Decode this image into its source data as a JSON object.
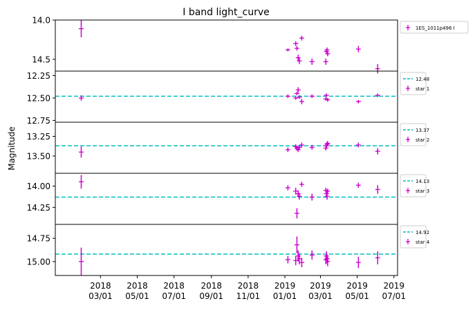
{
  "title": "I band light_curve",
  "ylabel": "Magnitude",
  "colors": {
    "points": "#cc00cc",
    "refline": "#00bfbf",
    "axes": "#000000"
  },
  "chart_data": {
    "type": "scatter",
    "title": "I band light_curve",
    "xlabel": "",
    "ylabel": "Magnitude",
    "y_inverted": true,
    "grid": false,
    "legend_placement": "outside-right",
    "xlim": [
      "2017-12-16",
      "2019-07-07"
    ],
    "x_ticks": [
      {
        "date": "2018-03-01",
        "line1": "2018",
        "line2": "03/01"
      },
      {
        "date": "2018-05-01",
        "line1": "2018",
        "line2": "05/01"
      },
      {
        "date": "2018-07-01",
        "line1": "2018",
        "line2": "07/01"
      },
      {
        "date": "2018-09-01",
        "line1": "2018",
        "line2": "09/01"
      },
      {
        "date": "2018-11-01",
        "line1": "2018",
        "line2": "11/01"
      },
      {
        "date": "2019-01-01",
        "line1": "2019",
        "line2": "01/01"
      },
      {
        "date": "2019-03-01",
        "line1": "2019",
        "line2": "03/01"
      },
      {
        "date": "2019-05-01",
        "line1": "2019",
        "line2": "05/01"
      },
      {
        "date": "2019-07-01",
        "line1": "2019",
        "line2": "07/01"
      }
    ],
    "panels": [
      {
        "series_name": "1ES_1011p496 I",
        "ylim": [
          14.0,
          14.65
        ],
        "yticks": [
          "14.0",
          "14.5"
        ],
        "points": [
          {
            "x": "2018-01-28",
            "y": 14.11,
            "err": 0.11
          },
          {
            "x": "2019-01-06",
            "y": 14.38,
            "err": 0.02
          },
          {
            "x": "2019-01-19",
            "y": 14.3,
            "err": 0.03
          },
          {
            "x": "2019-01-21",
            "y": 14.36,
            "err": 0.03
          },
          {
            "x": "2019-01-23",
            "y": 14.48,
            "err": 0.04
          },
          {
            "x": "2019-01-25",
            "y": 14.52,
            "err": 0.04
          },
          {
            "x": "2019-01-29",
            "y": 14.23,
            "err": 0.03
          },
          {
            "x": "2019-02-15",
            "y": 14.53,
            "err": 0.04
          },
          {
            "x": "2019-03-10",
            "y": 14.53,
            "err": 0.04
          },
          {
            "x": "2019-03-11",
            "y": 14.4,
            "err": 0.03
          },
          {
            "x": "2019-03-12",
            "y": 14.38,
            "err": 0.03
          },
          {
            "x": "2019-03-13",
            "y": 14.43,
            "err": 0.03
          },
          {
            "x": "2019-05-03",
            "y": 14.37,
            "err": 0.04
          },
          {
            "x": "2019-06-04",
            "y": 14.62,
            "err": 0.06
          }
        ]
      },
      {
        "series_name": "star 1",
        "ref": 12.48,
        "ref_label": "12.48",
        "ylim": [
          12.2,
          12.77
        ],
        "yticks": [
          "12.25",
          "12.50",
          "12.75"
        ],
        "points": [
          {
            "x": "2018-01-28",
            "y": 12.5,
            "err": 0.03
          },
          {
            "x": "2019-01-06",
            "y": 12.48,
            "err": 0.02
          },
          {
            "x": "2019-01-19",
            "y": 12.5,
            "err": 0.02
          },
          {
            "x": "2019-01-21",
            "y": 12.45,
            "err": 0.02
          },
          {
            "x": "2019-01-23",
            "y": 12.41,
            "err": 0.03
          },
          {
            "x": "2019-01-25",
            "y": 12.49,
            "err": 0.02
          },
          {
            "x": "2019-01-29",
            "y": 12.54,
            "err": 0.03
          },
          {
            "x": "2019-02-15",
            "y": 12.48,
            "err": 0.02
          },
          {
            "x": "2019-03-10",
            "y": 12.51,
            "err": 0.02
          },
          {
            "x": "2019-03-11",
            "y": 12.47,
            "err": 0.02
          },
          {
            "x": "2019-03-13",
            "y": 12.52,
            "err": 0.02
          },
          {
            "x": "2019-05-03",
            "y": 12.54,
            "err": 0.02
          },
          {
            "x": "2019-06-04",
            "y": 12.47,
            "err": 0.02
          }
        ]
      },
      {
        "series_name": "star 2",
        "ref": 13.37,
        "ref_label": "13.37",
        "ylim": [
          13.07,
          13.72
        ],
        "yticks": [
          "13.25",
          "13.50"
        ],
        "points": [
          {
            "x": "2018-01-28",
            "y": 13.45,
            "err": 0.07
          },
          {
            "x": "2019-01-06",
            "y": 13.42,
            "err": 0.03
          },
          {
            "x": "2019-01-19",
            "y": 13.38,
            "err": 0.03
          },
          {
            "x": "2019-01-21",
            "y": 13.4,
            "err": 0.03
          },
          {
            "x": "2019-01-23",
            "y": 13.42,
            "err": 0.03
          },
          {
            "x": "2019-01-25",
            "y": 13.39,
            "err": 0.03
          },
          {
            "x": "2019-01-29",
            "y": 13.36,
            "err": 0.03
          },
          {
            "x": "2019-02-15",
            "y": 13.39,
            "err": 0.03
          },
          {
            "x": "2019-03-10",
            "y": 13.4,
            "err": 0.03
          },
          {
            "x": "2019-03-11",
            "y": 13.37,
            "err": 0.03
          },
          {
            "x": "2019-03-12",
            "y": 13.35,
            "err": 0.03
          },
          {
            "x": "2019-03-13",
            "y": 13.34,
            "err": 0.03
          },
          {
            "x": "2019-05-03",
            "y": 13.36,
            "err": 0.03
          },
          {
            "x": "2019-06-04",
            "y": 13.44,
            "err": 0.04
          }
        ]
      },
      {
        "series_name": "star 3",
        "ref": 14.13,
        "ref_label": "14.13",
        "ylim": [
          13.85,
          14.45
        ],
        "yticks": [
          "14.00",
          "14.25"
        ],
        "points": [
          {
            "x": "2018-01-28",
            "y": 13.95,
            "err": 0.08
          },
          {
            "x": "2019-01-06",
            "y": 14.02,
            "err": 0.03
          },
          {
            "x": "2019-01-19",
            "y": 14.06,
            "err": 0.04
          },
          {
            "x": "2019-01-21",
            "y": 14.32,
            "err": 0.06
          },
          {
            "x": "2019-01-23",
            "y": 14.09,
            "err": 0.04
          },
          {
            "x": "2019-01-25",
            "y": 14.12,
            "err": 0.04
          },
          {
            "x": "2019-01-29",
            "y": 13.98,
            "err": 0.03
          },
          {
            "x": "2019-02-15",
            "y": 14.13,
            "err": 0.04
          },
          {
            "x": "2019-03-10",
            "y": 14.05,
            "err": 0.03
          },
          {
            "x": "2019-03-11",
            "y": 14.09,
            "err": 0.04
          },
          {
            "x": "2019-03-12",
            "y": 14.12,
            "err": 0.04
          },
          {
            "x": "2019-03-13",
            "y": 14.06,
            "err": 0.03
          },
          {
            "x": "2019-05-03",
            "y": 13.99,
            "err": 0.03
          },
          {
            "x": "2019-06-04",
            "y": 14.04,
            "err": 0.05
          }
        ]
      },
      {
        "series_name": "star 4",
        "ref": 14.92,
        "ref_label": "14.92",
        "ylim": [
          14.6,
          15.15
        ],
        "yticks": [
          "14.75",
          "15.00"
        ],
        "points": [
          {
            "x": "2018-01-28",
            "y": 15.0,
            "err": 0.15
          },
          {
            "x": "2019-01-06",
            "y": 14.98,
            "err": 0.04
          },
          {
            "x": "2019-01-19",
            "y": 14.99,
            "err": 0.05
          },
          {
            "x": "2019-01-21",
            "y": 14.82,
            "err": 0.09
          },
          {
            "x": "2019-01-23",
            "y": 14.94,
            "err": 0.06
          },
          {
            "x": "2019-01-25",
            "y": 14.97,
            "err": 0.06
          },
          {
            "x": "2019-01-29",
            "y": 15.01,
            "err": 0.05
          },
          {
            "x": "2019-02-15",
            "y": 14.93,
            "err": 0.05
          },
          {
            "x": "2019-03-10",
            "y": 14.98,
            "err": 0.05
          },
          {
            "x": "2019-03-11",
            "y": 14.94,
            "err": 0.05
          },
          {
            "x": "2019-03-12",
            "y": 14.97,
            "err": 0.05
          },
          {
            "x": "2019-03-13",
            "y": 15.0,
            "err": 0.05
          },
          {
            "x": "2019-05-03",
            "y": 15.01,
            "err": 0.06
          },
          {
            "x": "2019-06-04",
            "y": 14.96,
            "err": 0.07
          }
        ]
      }
    ]
  }
}
